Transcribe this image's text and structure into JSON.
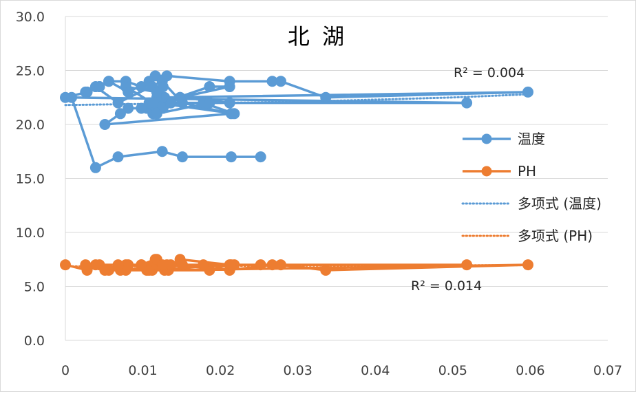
{
  "chart_data": {
    "type": "scatter",
    "title": "北 湖",
    "xlim": [
      0,
      0.07
    ],
    "ylim": [
      0,
      30
    ],
    "x_ticks": [
      "0",
      "0.01",
      "0.02",
      "0.03",
      "0.04",
      "0.05",
      "0.06",
      "0.07"
    ],
    "y_ticks": [
      "0.0",
      "5.0",
      "10.0",
      "15.0",
      "20.0",
      "25.0",
      "30.0"
    ],
    "grid": "horizontal",
    "legend_position": "right",
    "series": [
      {
        "name": "温度",
        "color": "#5b9bd5",
        "style": "line-with-markers",
        "x": [
          0.0,
          0.0028,
          0.0044,
          0.0056,
          0.0078,
          0.0098,
          0.0116,
          0.0131,
          0.0212,
          0.0267,
          0.0278,
          0.0336,
          0.0597,
          0.0128,
          0.0118,
          0.0078,
          0.0112,
          0.0105,
          0.0186,
          0.0212,
          0.0148,
          0.0133,
          0.0113,
          0.0118,
          0.0136,
          0.0178,
          0.0218,
          0.0118,
          0.0108,
          0.0098,
          0.0081,
          0.0071,
          0.0051,
          0.0214,
          0.0151,
          0.0125,
          0.0068,
          0.0039,
          0.0026,
          0.0044,
          0.0056,
          0.0081,
          0.0108,
          0.0112,
          0.0126,
          0.0123,
          0.0118,
          0.0126,
          0.0118,
          0.0186,
          0.0212,
          0.0148,
          0.0136,
          0.0118,
          0.0113,
          0.0136,
          0.0518,
          0.0008,
          0.0039,
          0.0068,
          0.0125,
          0.0151,
          0.0214,
          0.0252
        ],
        "y": [
          22.5,
          23.0,
          23.5,
          24.0,
          24.0,
          23.5,
          24.5,
          24.5,
          24.0,
          24.0,
          24.0,
          22.5,
          23.0,
          22.5,
          23.0,
          23.5,
          22.0,
          21.5,
          23.5,
          23.5,
          22.5,
          22.0,
          21.0,
          21.5,
          22.0,
          22.0,
          21.0,
          22.0,
          22.0,
          21.5,
          21.5,
          21.0,
          20.0,
          21.0,
          22.0,
          24.0,
          22.0,
          23.5,
          23.0,
          23.5,
          24.0,
          23.0,
          24.0,
          23.5,
          23.5,
          22.0,
          22.5,
          21.5,
          21.0,
          22.0,
          22.0,
          22.5,
          22.0,
          23.0,
          22.0,
          22.0,
          22.0,
          22.5,
          16.0,
          17.0,
          17.5,
          17.0,
          17.0,
          17.0
        ]
      },
      {
        "name": "PH",
        "color": "#ed7d31",
        "style": "line-with-markers",
        "x": [
          0.0,
          0.0028,
          0.0044,
          0.0056,
          0.0078,
          0.0098,
          0.0116,
          0.0131,
          0.0212,
          0.0267,
          0.0278,
          0.0336,
          0.0597,
          0.0128,
          0.0118,
          0.0078,
          0.0112,
          0.0105,
          0.0186,
          0.0212,
          0.0148,
          0.0133,
          0.0113,
          0.0118,
          0.0136,
          0.0178,
          0.0218,
          0.0108,
          0.0098,
          0.0081,
          0.0071,
          0.0051,
          0.0039,
          0.0026,
          0.0068,
          0.0125,
          0.0151,
          0.0214,
          0.0252,
          0.0518
        ],
        "y": [
          7.0,
          6.5,
          7.0,
          6.5,
          7.0,
          7.0,
          7.5,
          7.0,
          6.5,
          7.0,
          7.0,
          6.5,
          7.0,
          6.5,
          7.0,
          6.5,
          6.5,
          6.5,
          6.5,
          7.0,
          7.5,
          6.5,
          7.0,
          7.5,
          7.0,
          7.0,
          7.0,
          6.5,
          7.0,
          7.0,
          6.5,
          6.5,
          7.0,
          7.0,
          7.0,
          7.0,
          7.0,
          7.0,
          7.0,
          7.0
        ]
      }
    ],
    "trendlines": [
      {
        "name": "多项式 (温度)",
        "type": "polynomial",
        "color": "#5b9bd5",
        "r_squared_label": "R² = 0.004",
        "x": [
          0.0,
          0.01,
          0.02,
          0.03,
          0.04,
          0.05,
          0.06
        ],
        "y": [
          21.8,
          21.9,
          22.0,
          22.1,
          22.3,
          22.5,
          22.8
        ]
      },
      {
        "name": "多项式 (PH)",
        "type": "polynomial",
        "color": "#ed7d31",
        "r_squared_label": "R² = 0.014",
        "x": [
          0.0,
          0.01,
          0.02,
          0.03,
          0.04,
          0.05,
          0.06
        ],
        "y": [
          6.85,
          6.88,
          6.9,
          6.92,
          6.93,
          6.95,
          6.97
        ]
      }
    ]
  }
}
